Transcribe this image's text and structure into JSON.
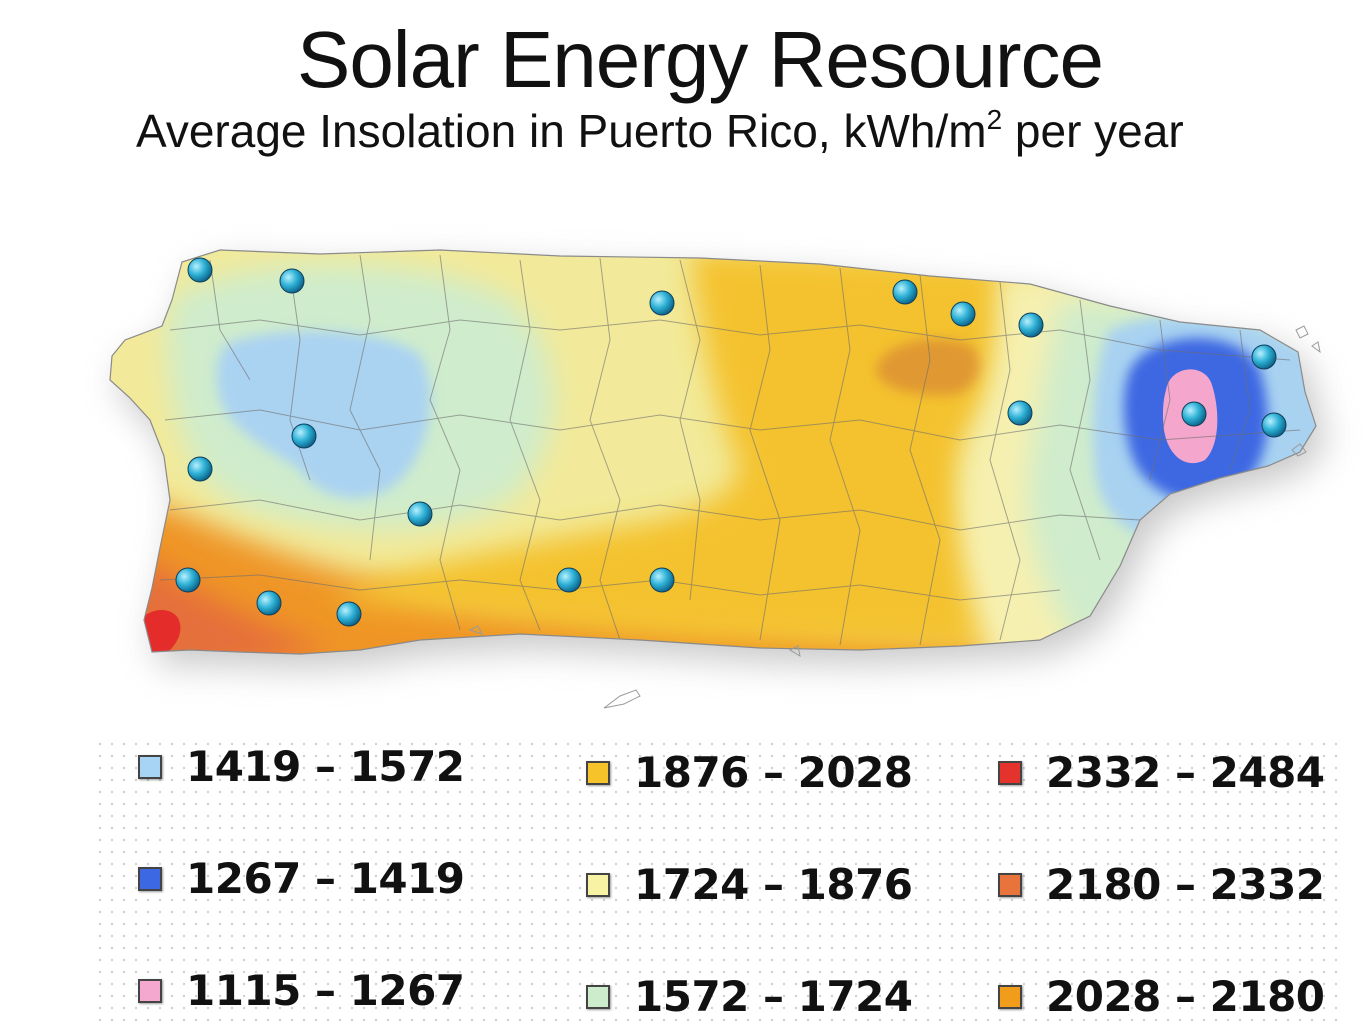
{
  "title": "Solar Energy Resource",
  "subtitle": {
    "text": "Average Insolation in Puerto Rico, kWh/m",
    "superscript": "2",
    "suffix": " per year"
  },
  "legend": [
    {
      "label": "1419 – 1572",
      "color": "#a7d4f4"
    },
    {
      "label": "1267 – 1419",
      "color": "#3d68e4"
    },
    {
      "label": "1115 – 1267",
      "color": "#f5a8cf"
    },
    {
      "label": "1876 – 2028",
      "color": "#f6c32a"
    },
    {
      "label": "1724 – 1876",
      "color": "#f8f2a4"
    },
    {
      "label": "1572 – 1724",
      "color": "#cdeccb"
    },
    {
      "label": "2332 – 2484",
      "color": "#e4322c"
    },
    {
      "label": "2180 – 2332",
      "color": "#e8743c"
    },
    {
      "label": "2028 – 2180",
      "color": "#f29c1c"
    }
  ],
  "stations_marker": "measurement-station-dot"
}
